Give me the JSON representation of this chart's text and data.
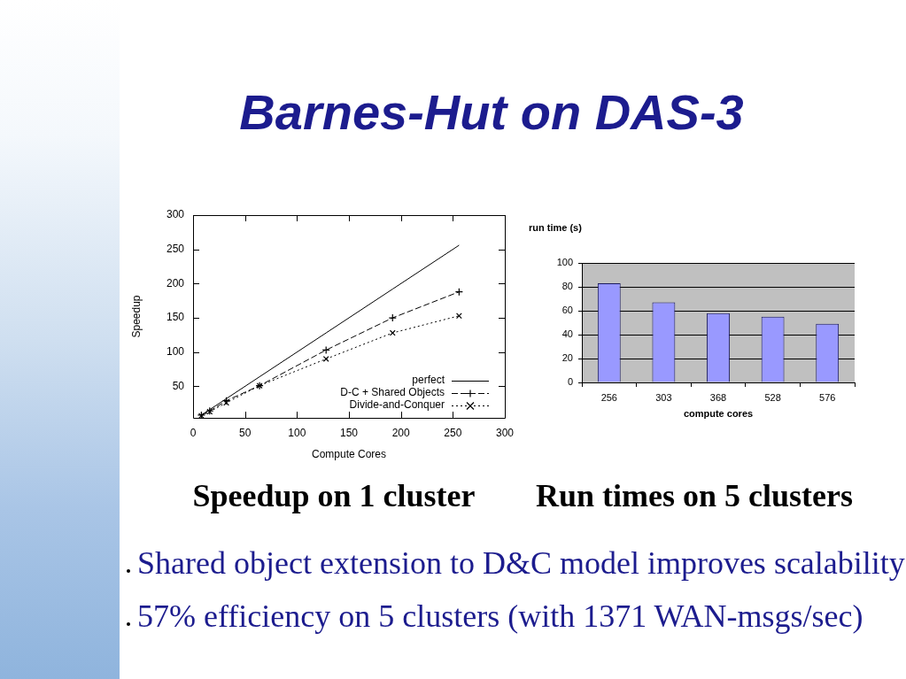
{
  "chart_data": [
    {
      "type": "line",
      "title": "Barnes-Hut on DAS-3",
      "xlabel": "Compute Cores",
      "ylabel": "Speedup",
      "annotations": [
        "Speedup on 1 cluster"
      ],
      "x": [
        8,
        16,
        32,
        64,
        128,
        192,
        256
      ],
      "series": [
        {
          "name": "perfect",
          "color": "#000000",
          "values": [
            8,
            16,
            32,
            64,
            128,
            192,
            256
          ],
          "marker": "none",
          "line_style": "solid"
        },
        {
          "name": "D-C + Shared Objects",
          "color": "#000000",
          "values": [
            8,
            14,
            29,
            51,
            103,
            150,
            188
          ],
          "marker": "cross",
          "line_style": "dashed"
        },
        {
          "name": "Divide-and-Conquer",
          "color": "#000000",
          "values": [
            7,
            13,
            26,
            51,
            90,
            128,
            153
          ],
          "marker": "x",
          "line_style": "dotted"
        }
      ],
      "xlim": [
        0,
        300
      ],
      "xticks": [
        0,
        50,
        100,
        150,
        200,
        250,
        300
      ],
      "ylim": [
        4,
        300
      ],
      "yticks": [
        50,
        100,
        150,
        200,
        250,
        300
      ],
      "legend": "bottom right"
    },
    {
      "type": "bar",
      "xlabel": "compute cores",
      "ylabel": "run time (s)",
      "annotations": [
        "Run times on 5 clusters",
        "Shared object extension to D&C model improves scalability",
        "57% efficiency on 5 clusters (with 1371 WAN-msgs/sec)"
      ],
      "categories": [
        "256",
        "303",
        "368",
        "528",
        "576"
      ],
      "values": [
        83,
        67,
        58,
        55,
        49
      ],
      "color": "#9999ff",
      "ylim": [
        0,
        100
      ],
      "yticks": [
        0,
        20,
        40,
        60,
        80,
        100
      ],
      "grid": "y"
    }
  ]
}
